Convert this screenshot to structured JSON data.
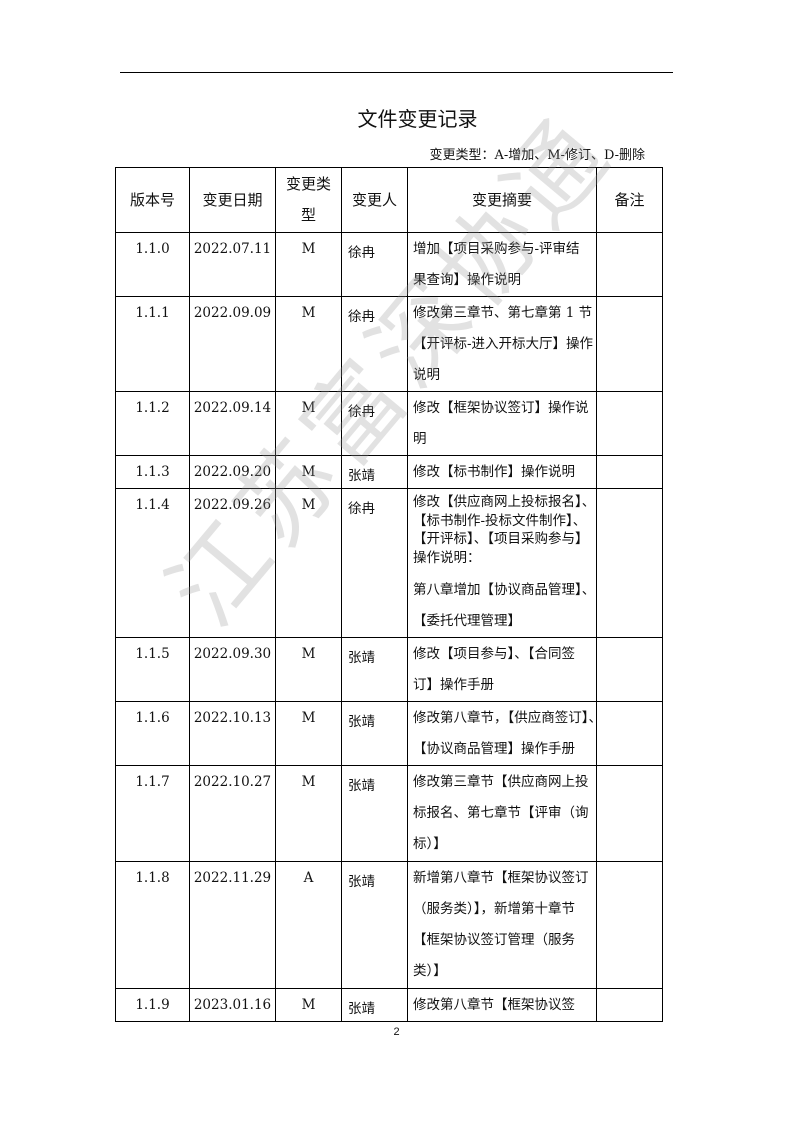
{
  "document": {
    "title": "文件变更记录",
    "legend": "变更类型：A-增加、M-修订、D-删除",
    "page_number": "2",
    "watermark": "江苏富深协通"
  },
  "table": {
    "headers": [
      "版本号",
      "变更日期",
      "变更类型",
      "变更人",
      "变更摘要",
      "备注"
    ],
    "rows": [
      {
        "version": "1.1.0",
        "date": "2022.07.11",
        "type": "M",
        "person": "徐冉",
        "summary": [
          "增加【项目采购参与-评审结",
          "果查询】操作说明"
        ],
        "note": ""
      },
      {
        "version": "1.1.1",
        "date": "2022.09.09",
        "type": "M",
        "person": "徐冉",
        "summary": [
          "修改第三章节、第七章第 1 节",
          "【开评标-进入开标大厅】操作",
          "说明"
        ],
        "note": ""
      },
      {
        "version": "1.1.2",
        "date": "2022.09.14",
        "type": "M",
        "person": "徐冉",
        "summary": [
          "修改【框架协议签订】操作说",
          "明"
        ],
        "note": ""
      },
      {
        "version": "1.1.3",
        "date": "2022.09.20",
        "type": "M",
        "person": "张靖",
        "summary": [
          "修改【标书制作】操作说明"
        ],
        "note": ""
      },
      {
        "version": "1.1.4",
        "date": "2022.09.26",
        "type": "M",
        "person": "徐冉",
        "summary": [
          "修改【供应商网上投标报名】、",
          "【标书制作-投标文件制作】、",
          "【开评标】、【项目采购参与】",
          "操作说明：",
          "第八章增加【协议商品管理】、",
          "【委托代理管理】"
        ],
        "note": ""
      },
      {
        "version": "1.1.5",
        "date": "2022.09.30",
        "type": "M",
        "person": "张靖",
        "summary": [
          "修改【项目参与】、【合同签",
          "订】操作手册"
        ],
        "note": ""
      },
      {
        "version": "1.1.6",
        "date": "2022.10.13",
        "type": "M",
        "person": "张靖",
        "summary": [
          "修改第八章节，【供应商签订】、",
          "【协议商品管理】操作手册"
        ],
        "note": ""
      },
      {
        "version": "1.1.7",
        "date": "2022.10.27",
        "type": "M",
        "person": "张靖",
        "summary": [
          "修改第三章节【供应商网上投",
          "标报名、第七章节【评审（询",
          "标）】"
        ],
        "note": ""
      },
      {
        "version": "1.1.8",
        "date": "2022.11.29",
        "type": "A",
        "person": "张靖",
        "summary": [
          "新增第八章节【框架协议签订",
          "（服务类）】，新增第十章节",
          "【框架协议签订管理（服务",
          "类）】"
        ],
        "note": ""
      },
      {
        "version": "1.1.9",
        "date": "2023.01.16",
        "type": "M",
        "person": "张靖",
        "summary": [
          "修改第八章节【框架协议签"
        ],
        "note": ""
      }
    ]
  }
}
